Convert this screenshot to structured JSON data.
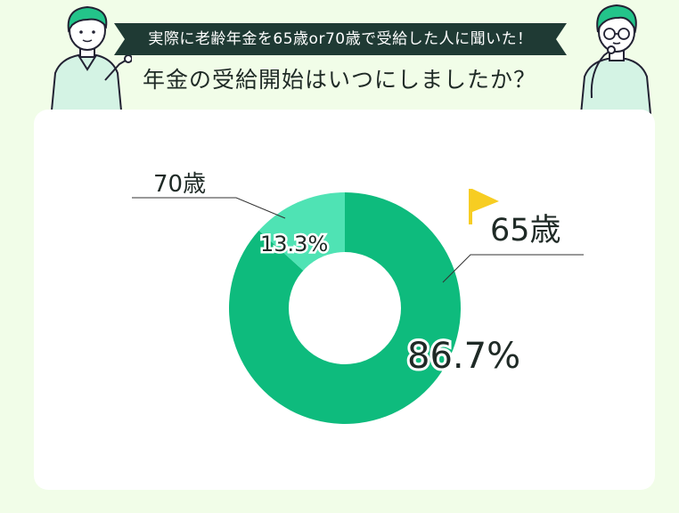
{
  "header": {
    "banner_text": "実際に老齢年金を65歳or70歳で受給した人に聞いた！",
    "title": "年金の受給開始はいつにしましたか？",
    "banner_color": "#1f3a34"
  },
  "chart_data": {
    "type": "pie",
    "donut": true,
    "title": "年金の受給開始はいつにしましたか？",
    "categories": [
      "65歳",
      "70歳"
    ],
    "values": [
      86.7,
      13.3
    ],
    "value_labels": [
      "86.7%",
      "13.3%"
    ],
    "colors": [
      "#0ebb7d",
      "#4fe3b4"
    ],
    "legend": "none",
    "annotation_flag_color": "#f7cd22"
  }
}
